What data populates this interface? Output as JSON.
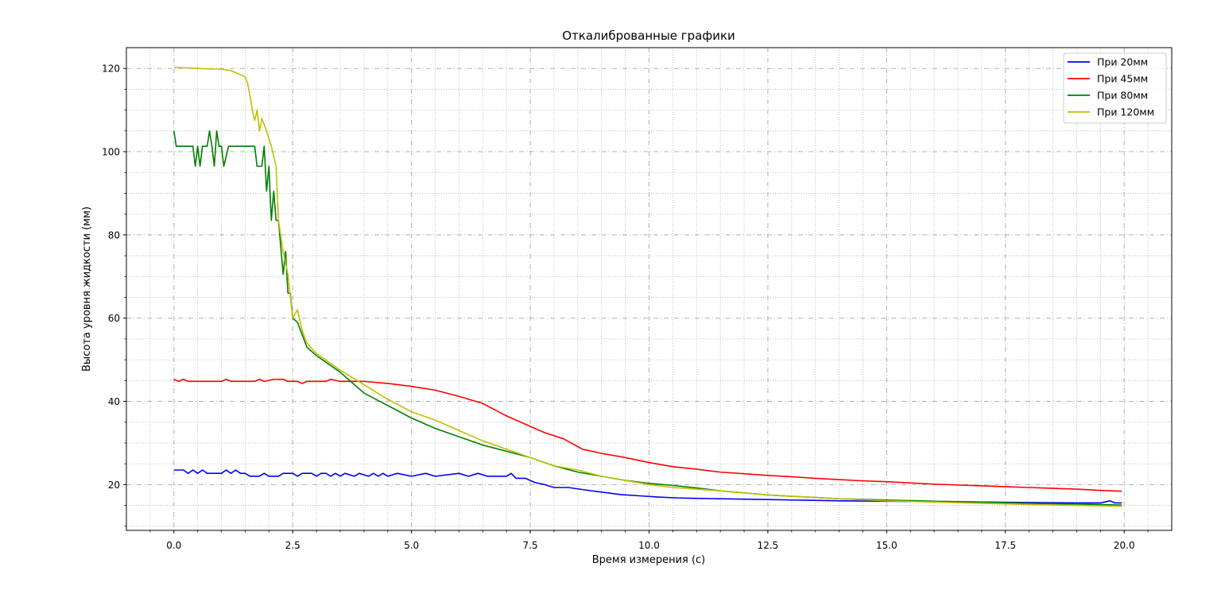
{
  "chart_data": {
    "type": "line",
    "title": "Откалиброванные графики",
    "xlabel": "Время измерения (с)",
    "ylabel": "Высота уровня жидкости (мм)",
    "xlim": [
      -1.0,
      21.0
    ],
    "ylim": [
      9.0,
      125.0
    ],
    "xticks": [
      0.0,
      2.5,
      5.0,
      7.5,
      10.0,
      12.5,
      15.0,
      17.5,
      20.0
    ],
    "xtick_labels": [
      "0.0",
      "2.5",
      "5.0",
      "7.5",
      "10.0",
      "12.5",
      "15.0",
      "17.5",
      "20.0"
    ],
    "yticks": [
      20,
      40,
      60,
      80,
      100,
      120
    ],
    "ytick_labels": [
      "20",
      "40",
      "60",
      "80",
      "100",
      "120"
    ],
    "grid": true,
    "legend_position": "top-right",
    "series": [
      {
        "name": "При 20мм",
        "color": "#0000ff",
        "points": [
          [
            0,
            23.5
          ],
          [
            0.2,
            23.5
          ],
          [
            0.3,
            22.7
          ],
          [
            0.4,
            23.5
          ],
          [
            0.5,
            22.7
          ],
          [
            0.6,
            23.5
          ],
          [
            0.7,
            22.7
          ],
          [
            1.0,
            22.7
          ],
          [
            1.1,
            23.5
          ],
          [
            1.2,
            22.7
          ],
          [
            1.3,
            23.5
          ],
          [
            1.4,
            22.7
          ],
          [
            1.5,
            22.7
          ],
          [
            1.6,
            22.0
          ],
          [
            1.8,
            22.0
          ],
          [
            1.9,
            22.7
          ],
          [
            2.0,
            22.0
          ],
          [
            2.2,
            22.0
          ],
          [
            2.3,
            22.7
          ],
          [
            2.5,
            22.7
          ],
          [
            2.6,
            22.0
          ],
          [
            2.7,
            22.7
          ],
          [
            2.9,
            22.7
          ],
          [
            3.0,
            22.0
          ],
          [
            3.1,
            22.7
          ],
          [
            3.2,
            22.7
          ],
          [
            3.3,
            22.0
          ],
          [
            3.4,
            22.7
          ],
          [
            3.5,
            22.0
          ],
          [
            3.6,
            22.7
          ],
          [
            3.8,
            22.0
          ],
          [
            3.9,
            22.7
          ],
          [
            4.1,
            22.0
          ],
          [
            4.2,
            22.7
          ],
          [
            4.3,
            22.0
          ],
          [
            4.4,
            22.7
          ],
          [
            4.5,
            22.0
          ],
          [
            4.7,
            22.7
          ],
          [
            5.0,
            22.0
          ],
          [
            5.3,
            22.7
          ],
          [
            5.5,
            22.0
          ],
          [
            6.0,
            22.7
          ],
          [
            6.2,
            22.0
          ],
          [
            6.4,
            22.7
          ],
          [
            6.6,
            22.0
          ],
          [
            7.0,
            22.0
          ],
          [
            7.1,
            22.7
          ],
          [
            7.2,
            21.5
          ],
          [
            7.4,
            21.5
          ],
          [
            7.6,
            20.5
          ],
          [
            7.8,
            20.0
          ],
          [
            8.0,
            19.3
          ],
          [
            8.3,
            19.3
          ],
          [
            8.6,
            18.8
          ],
          [
            9.0,
            18.2
          ],
          [
            9.4,
            17.6
          ],
          [
            9.8,
            17.3
          ],
          [
            10.2,
            17.0
          ],
          [
            10.6,
            16.8
          ],
          [
            11.0,
            16.7
          ],
          [
            11.5,
            16.6
          ],
          [
            12.0,
            16.5
          ],
          [
            12.5,
            16.4
          ],
          [
            13.0,
            16.3
          ],
          [
            14.0,
            16.1
          ],
          [
            15.0,
            16.0
          ],
          [
            16.0,
            15.9
          ],
          [
            17.0,
            15.8
          ],
          [
            18.0,
            15.7
          ],
          [
            19.0,
            15.6
          ],
          [
            19.5,
            15.6
          ],
          [
            19.7,
            16.1
          ],
          [
            19.8,
            15.6
          ],
          [
            19.95,
            15.6
          ]
        ]
      },
      {
        "name": "При 45мм",
        "color": "#ff0000",
        "points": [
          [
            0,
            45.3
          ],
          [
            0.1,
            44.8
          ],
          [
            0.2,
            45.3
          ],
          [
            0.3,
            44.8
          ],
          [
            1.0,
            44.8
          ],
          [
            1.1,
            45.3
          ],
          [
            1.2,
            44.8
          ],
          [
            1.7,
            44.8
          ],
          [
            1.8,
            45.3
          ],
          [
            1.9,
            44.8
          ],
          [
            2.1,
            45.3
          ],
          [
            2.3,
            45.3
          ],
          [
            2.4,
            44.8
          ],
          [
            2.6,
            44.8
          ],
          [
            2.7,
            44.3
          ],
          [
            2.8,
            44.8
          ],
          [
            3.2,
            44.8
          ],
          [
            3.3,
            45.3
          ],
          [
            3.5,
            44.8
          ],
          [
            4.0,
            44.8
          ],
          [
            4.5,
            44.3
          ],
          [
            5.0,
            43.6
          ],
          [
            5.5,
            42.7
          ],
          [
            6.0,
            41.2
          ],
          [
            6.5,
            39.5
          ],
          [
            7.0,
            36.5
          ],
          [
            7.5,
            34.0
          ],
          [
            7.8,
            32.5
          ],
          [
            8.2,
            31.0
          ],
          [
            8.6,
            28.5
          ],
          [
            9.0,
            27.5
          ],
          [
            9.5,
            26.5
          ],
          [
            10.0,
            25.3
          ],
          [
            10.5,
            24.3
          ],
          [
            11.0,
            23.7
          ],
          [
            11.5,
            23.0
          ],
          [
            12.0,
            22.6
          ],
          [
            12.5,
            22.2
          ],
          [
            13.0,
            21.9
          ],
          [
            13.5,
            21.5
          ],
          [
            14.0,
            21.2
          ],
          [
            14.5,
            20.9
          ],
          [
            15.0,
            20.7
          ],
          [
            15.5,
            20.4
          ],
          [
            16.0,
            20.1
          ],
          [
            16.5,
            19.9
          ],
          [
            17.0,
            19.7
          ],
          [
            17.5,
            19.5
          ],
          [
            18.0,
            19.3
          ],
          [
            18.5,
            19.1
          ],
          [
            19.0,
            18.9
          ],
          [
            19.5,
            18.6
          ],
          [
            19.95,
            18.4
          ]
        ]
      },
      {
        "name": "При 80мм",
        "color": "#008000",
        "points": [
          [
            0,
            105
          ],
          [
            0.05,
            101.3
          ],
          [
            0.4,
            101.3
          ],
          [
            0.45,
            96.5
          ],
          [
            0.5,
            101.3
          ],
          [
            0.55,
            96.5
          ],
          [
            0.6,
            101.3
          ],
          [
            0.7,
            101.3
          ],
          [
            0.75,
            105
          ],
          [
            0.8,
            101.3
          ],
          [
            0.85,
            96.5
          ],
          [
            0.9,
            105
          ],
          [
            0.95,
            101.3
          ],
          [
            1.0,
            101.3
          ],
          [
            1.05,
            96.5
          ],
          [
            1.15,
            101.3
          ],
          [
            1.7,
            101.3
          ],
          [
            1.75,
            96.5
          ],
          [
            1.85,
            96.5
          ],
          [
            1.9,
            101.3
          ],
          [
            1.95,
            90.5
          ],
          [
            2.0,
            96.5
          ],
          [
            2.05,
            83.5
          ],
          [
            2.1,
            90.5
          ],
          [
            2.15,
            83.5
          ],
          [
            2.2,
            83.5
          ],
          [
            2.3,
            70.5
          ],
          [
            2.35,
            76.0
          ],
          [
            2.4,
            66.0
          ],
          [
            2.45,
            66.0
          ],
          [
            2.5,
            60.0
          ],
          [
            2.6,
            59.0
          ],
          [
            2.7,
            56.0
          ],
          [
            2.8,
            53.0
          ],
          [
            3.0,
            51.0
          ],
          [
            3.5,
            47.0
          ],
          [
            4.0,
            42.0
          ],
          [
            4.5,
            39.0
          ],
          [
            5.0,
            36.0
          ],
          [
            5.5,
            33.5
          ],
          [
            6.0,
            31.5
          ],
          [
            6.5,
            29.5
          ],
          [
            7.0,
            28.0
          ],
          [
            7.5,
            26.5
          ],
          [
            8.0,
            24.5
          ],
          [
            8.5,
            23.0
          ],
          [
            9.0,
            22.0
          ],
          [
            9.5,
            21.0
          ],
          [
            10.0,
            20.3
          ],
          [
            10.5,
            19.8
          ],
          [
            11.0,
            19.2
          ],
          [
            11.5,
            18.5
          ],
          [
            12.0,
            18.0
          ],
          [
            12.5,
            17.5
          ],
          [
            13.0,
            17.2
          ],
          [
            13.5,
            16.9
          ],
          [
            14.0,
            16.6
          ],
          [
            15.0,
            16.3
          ],
          [
            16.0,
            16.0
          ],
          [
            17.0,
            15.8
          ],
          [
            18.0,
            15.5
          ],
          [
            19.0,
            15.3
          ],
          [
            19.95,
            15.1
          ]
        ]
      },
      {
        "name": "При 120мм",
        "color": "#bfbf00",
        "points": [
          [
            0,
            120.3
          ],
          [
            0.5,
            120.0
          ],
          [
            1.0,
            119.8
          ],
          [
            1.2,
            119.5
          ],
          [
            1.4,
            118.5
          ],
          [
            1.5,
            118.0
          ],
          [
            1.55,
            116.5
          ],
          [
            1.6,
            113.5
          ],
          [
            1.65,
            110.0
          ],
          [
            1.7,
            107.5
          ],
          [
            1.75,
            110.0
          ],
          [
            1.8,
            105.0
          ],
          [
            1.85,
            108.0
          ],
          [
            1.95,
            105.0
          ],
          [
            2.05,
            101.3
          ],
          [
            2.15,
            96.5
          ],
          [
            2.2,
            83.5
          ],
          [
            2.3,
            76.0
          ],
          [
            2.4,
            70.5
          ],
          [
            2.5,
            60.0
          ],
          [
            2.6,
            62.0
          ],
          [
            2.7,
            57.0
          ],
          [
            2.8,
            54.0
          ],
          [
            3.0,
            51.5
          ],
          [
            3.5,
            47.5
          ],
          [
            4.0,
            44.0
          ],
          [
            4.5,
            40.5
          ],
          [
            5.0,
            37.5
          ],
          [
            5.5,
            35.5
          ],
          [
            6.0,
            33.0
          ],
          [
            6.5,
            30.5
          ],
          [
            7.0,
            28.5
          ],
          [
            7.5,
            26.5
          ],
          [
            8.0,
            24.5
          ],
          [
            8.5,
            23.5
          ],
          [
            9.0,
            22.0
          ],
          [
            9.5,
            21.0
          ],
          [
            10.0,
            20.0
          ],
          [
            10.5,
            19.3
          ],
          [
            11.0,
            18.9
          ],
          [
            11.5,
            18.5
          ],
          [
            12.0,
            18.0
          ],
          [
            12.5,
            17.5
          ],
          [
            13.0,
            17.2
          ],
          [
            13.5,
            16.9
          ],
          [
            14.0,
            16.6
          ],
          [
            15.0,
            16.1
          ],
          [
            16.0,
            15.8
          ],
          [
            17.0,
            15.5
          ],
          [
            18.0,
            15.2
          ],
          [
            19.0,
            15.0
          ],
          [
            19.95,
            14.8
          ]
        ]
      }
    ]
  }
}
